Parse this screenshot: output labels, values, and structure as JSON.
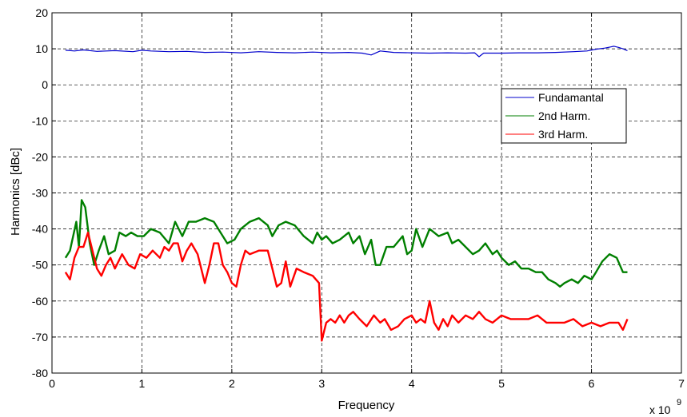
{
  "chart_data": {
    "type": "line",
    "xlabel": "Frequency",
    "ylabel": "Harmonics [dBc]",
    "x_multiplier_label": "x 10",
    "x_multiplier_exp": "9",
    "xlim": [
      0,
      7
    ],
    "ylim": [
      -80,
      20
    ],
    "xticks": [
      0,
      1,
      2,
      3,
      4,
      5,
      6,
      7
    ],
    "yticks": [
      20,
      10,
      0,
      -10,
      -20,
      -30,
      -40,
      -50,
      -60,
      -70,
      -80
    ],
    "grid": true,
    "legend_position": "upper-right",
    "series": [
      {
        "name": "Fundamantal",
        "color": "#0000cc",
        "x": [
          0.15,
          0.25,
          0.35,
          0.5,
          0.7,
          0.9,
          1.0,
          1.1,
          1.3,
          1.5,
          1.7,
          1.9,
          2.1,
          2.3,
          2.5,
          2.7,
          2.9,
          3.1,
          3.3,
          3.45,
          3.55,
          3.65,
          3.8,
          4.0,
          4.2,
          4.4,
          4.6,
          4.7,
          4.75,
          4.8,
          5.0,
          5.2,
          5.4,
          5.6,
          5.8,
          5.95,
          6.05,
          6.15,
          6.25,
          6.3,
          6.35,
          6.4
        ],
        "values": [
          9.6,
          9.4,
          9.7,
          9.3,
          9.5,
          9.2,
          9.6,
          9.4,
          9.2,
          9.3,
          9.0,
          9.1,
          8.9,
          9.2,
          9.0,
          8.9,
          9.1,
          8.9,
          9.0,
          8.8,
          8.3,
          9.4,
          9.0,
          8.9,
          8.8,
          8.9,
          8.8,
          8.9,
          7.8,
          8.8,
          8.8,
          8.9,
          8.9,
          9.0,
          9.2,
          9.4,
          9.9,
          10.2,
          10.7,
          10.4,
          10.0,
          9.5
        ]
      },
      {
        "name": "2nd Harm.",
        "color": "#007f00",
        "x": [
          0.15,
          0.2,
          0.27,
          0.3,
          0.33,
          0.37,
          0.42,
          0.47,
          0.52,
          0.58,
          0.63,
          0.7,
          0.75,
          0.82,
          0.88,
          0.95,
          1.02,
          1.1,
          1.2,
          1.3,
          1.37,
          1.45,
          1.52,
          1.6,
          1.7,
          1.8,
          1.9,
          1.95,
          2.03,
          2.1,
          2.2,
          2.3,
          2.4,
          2.45,
          2.52,
          2.6,
          2.7,
          2.8,
          2.9,
          2.95,
          3.0,
          3.05,
          3.12,
          3.2,
          3.3,
          3.35,
          3.42,
          3.48,
          3.55,
          3.6,
          3.65,
          3.72,
          3.8,
          3.9,
          3.95,
          4.0,
          4.05,
          4.12,
          4.2,
          4.3,
          4.4,
          4.45,
          4.52,
          4.6,
          4.68,
          4.75,
          4.82,
          4.9,
          4.95,
          5.0,
          5.08,
          5.15,
          5.22,
          5.3,
          5.38,
          5.45,
          5.52,
          5.6,
          5.65,
          5.7,
          5.78,
          5.85,
          5.92,
          6.0,
          6.05,
          6.12,
          6.2,
          6.28,
          6.35,
          6.4
        ],
        "values": [
          -48,
          -46,
          -38,
          -45,
          -32,
          -34,
          -44,
          -50,
          -46,
          -42,
          -47,
          -46,
          -41,
          -42,
          -41,
          -42,
          -42,
          -40,
          -41,
          -44,
          -38,
          -42,
          -38,
          -38,
          -37,
          -38,
          -42,
          -44,
          -43,
          -40,
          -38,
          -37,
          -39,
          -42,
          -39,
          -38,
          -39,
          -42,
          -44,
          -41,
          -43,
          -42,
          -44,
          -43,
          -41,
          -44,
          -42,
          -47,
          -43,
          -50,
          -50,
          -45,
          -45,
          -42,
          -47,
          -46,
          -40,
          -45,
          -40,
          -42,
          -41,
          -44,
          -43,
          -45,
          -47,
          -46,
          -44,
          -47,
          -46,
          -48,
          -50,
          -49,
          -51,
          -51,
          -52,
          -52,
          -54,
          -55,
          -56,
          -55,
          -54,
          -55,
          -53,
          -54,
          -52,
          -49,
          -47,
          -48,
          -52,
          -52
        ]
      },
      {
        "name": "3rd Harm.",
        "color": "#ff0000",
        "x": [
          0.15,
          0.2,
          0.25,
          0.3,
          0.35,
          0.4,
          0.45,
          0.5,
          0.55,
          0.6,
          0.65,
          0.7,
          0.78,
          0.85,
          0.92,
          0.98,
          1.05,
          1.12,
          1.2,
          1.25,
          1.3,
          1.35,
          1.4,
          1.45,
          1.5,
          1.55,
          1.62,
          1.7,
          1.75,
          1.8,
          1.85,
          1.9,
          1.95,
          2.0,
          2.05,
          2.1,
          2.15,
          2.2,
          2.3,
          2.4,
          2.45,
          2.5,
          2.55,
          2.6,
          2.65,
          2.72,
          2.8,
          2.9,
          2.97,
          3.0,
          3.05,
          3.1,
          3.15,
          3.2,
          3.25,
          3.3,
          3.35,
          3.42,
          3.5,
          3.58,
          3.65,
          3.7,
          3.77,
          3.85,
          3.92,
          4.0,
          4.05,
          4.1,
          4.15,
          4.2,
          4.25,
          4.3,
          4.35,
          4.4,
          4.45,
          4.52,
          4.6,
          4.68,
          4.75,
          4.82,
          4.9,
          5.0,
          5.1,
          5.2,
          5.3,
          5.4,
          5.5,
          5.6,
          5.7,
          5.8,
          5.9,
          6.0,
          6.1,
          6.2,
          6.3,
          6.35,
          6.4
        ],
        "values": [
          -52,
          -54,
          -48,
          -45,
          -45,
          -41,
          -46,
          -51,
          -53,
          -50,
          -48,
          -51,
          -47,
          -50,
          -51,
          -47,
          -48,
          -46,
          -48,
          -45,
          -46,
          -44,
          -44,
          -49,
          -46,
          -44,
          -47,
          -55,
          -50,
          -44,
          -44,
          -50,
          -52,
          -55,
          -56,
          -50,
          -46,
          -47,
          -46,
          -46,
          -51,
          -56,
          -55,
          -49,
          -56,
          -51,
          -52,
          -53,
          -55,
          -71,
          -66,
          -65,
          -66,
          -64,
          -66,
          -64,
          -63,
          -65,
          -67,
          -64,
          -66,
          -65,
          -68,
          -67,
          -65,
          -64,
          -66,
          -65,
          -66,
          -60,
          -66,
          -68,
          -65,
          -67,
          -64,
          -66,
          -64,
          -65,
          -63,
          -65,
          -66,
          -64,
          -65,
          -65,
          -65,
          -64,
          -66,
          -66,
          -66,
          -65,
          -67,
          -66,
          -67,
          -66,
          -66,
          -68,
          -65
        ]
      }
    ]
  }
}
